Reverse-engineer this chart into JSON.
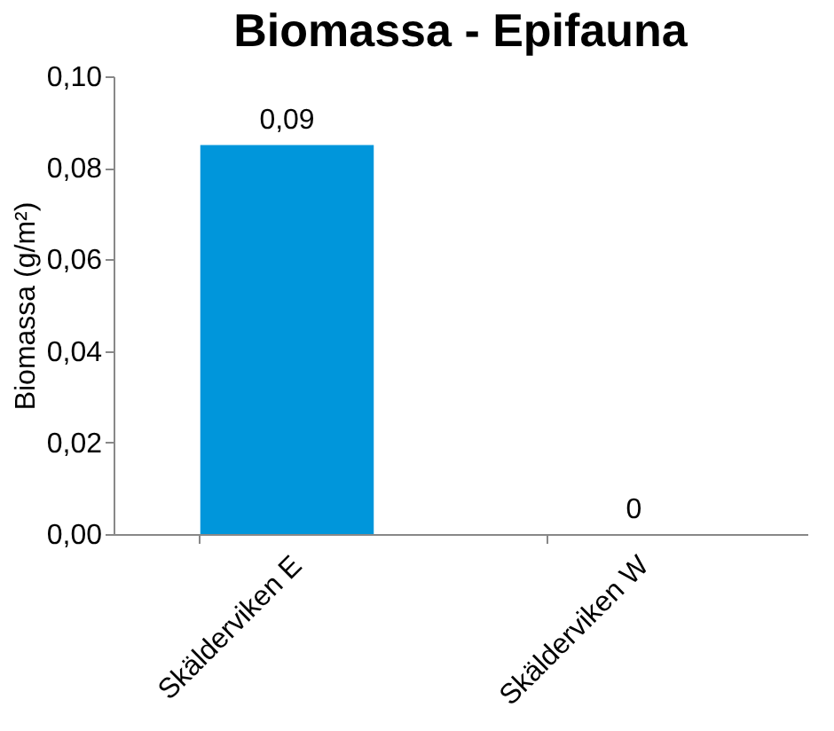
{
  "chart_data": {
    "type": "bar",
    "title": "Biomassa - Epifauna",
    "ylabel": "Biomassa (g/m²)",
    "categories": [
      "Skälderviken E",
      "Skälderviken W"
    ],
    "values": [
      0.085,
      0
    ],
    "color": "#0096db",
    "value_labels": [
      "0,09",
      "0"
    ],
    "ylim": [
      0,
      0.1
    ],
    "yticks": [
      {
        "value": 0,
        "label": "0,00"
      },
      {
        "value": 0.02,
        "label": "0,02"
      },
      {
        "value": 0.04,
        "label": "0,04"
      },
      {
        "value": 0.06,
        "label": "0,06"
      },
      {
        "value": 0.08,
        "label": "0,08"
      },
      {
        "value": 0.1,
        "label": "0,10"
      }
    ],
    "grid": false
  }
}
